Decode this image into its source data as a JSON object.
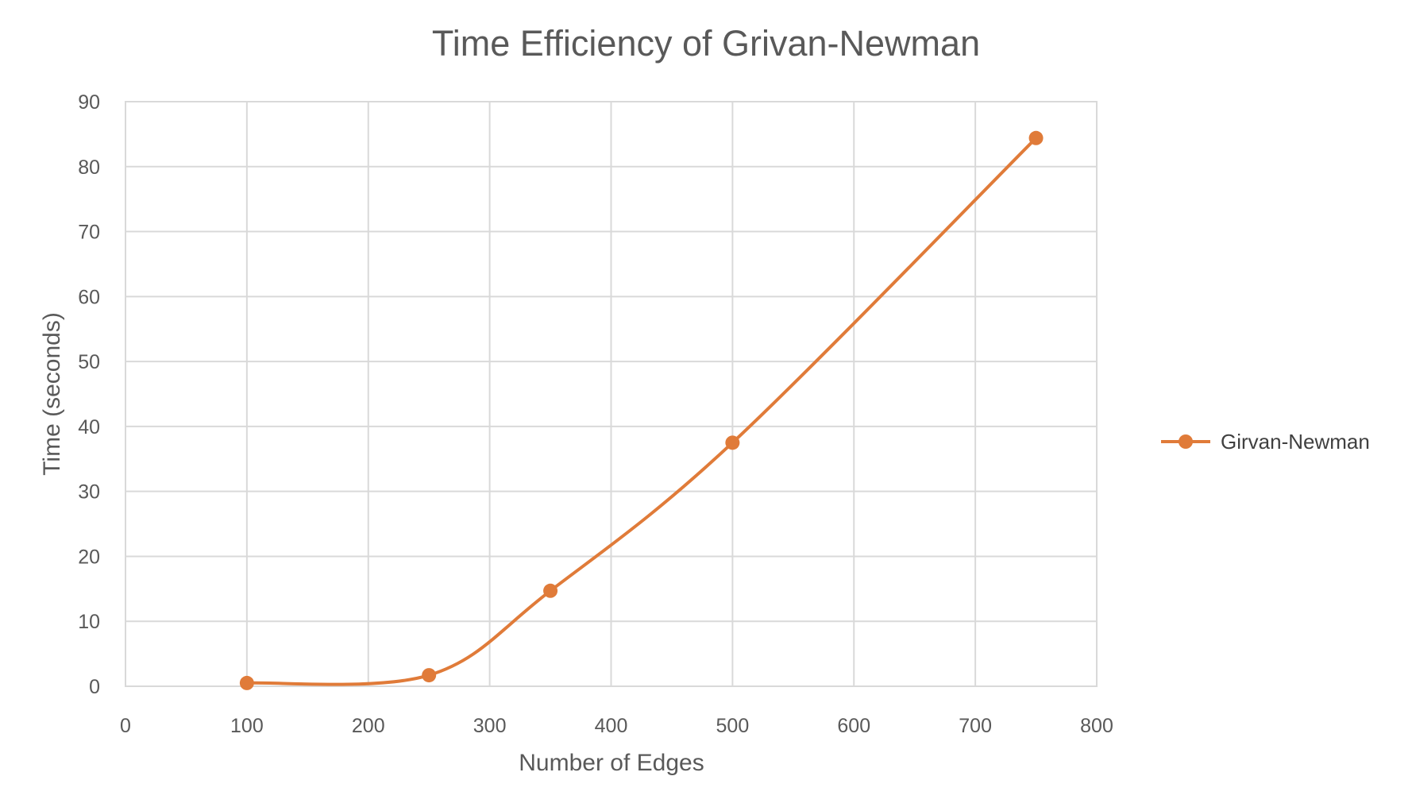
{
  "chart_data": {
    "type": "line",
    "title": "Time Efficiency of Grivan-Newman",
    "xlabel": "Number of Edges",
    "ylabel": "Time (seconds)",
    "xlim": [
      0,
      800
    ],
    "ylim": [
      0,
      90
    ],
    "x_ticks": [
      "0",
      "100",
      "200",
      "300",
      "400",
      "500",
      "600",
      "700",
      "800"
    ],
    "y_ticks": [
      "0",
      "10",
      "20",
      "30",
      "40",
      "50",
      "60",
      "70",
      "80",
      "90"
    ],
    "grid": true,
    "smooth": true,
    "legend_position": "right",
    "series": [
      {
        "name": "Girvan-Newman",
        "color": "#e07b39",
        "points": [
          {
            "x": 100,
            "y": 0.5
          },
          {
            "x": 250,
            "y": 1.7
          },
          {
            "x": 350,
            "y": 14.7
          },
          {
            "x": 500,
            "y": 37.5
          },
          {
            "x": 750,
            "y": 84.4
          }
        ]
      }
    ]
  }
}
